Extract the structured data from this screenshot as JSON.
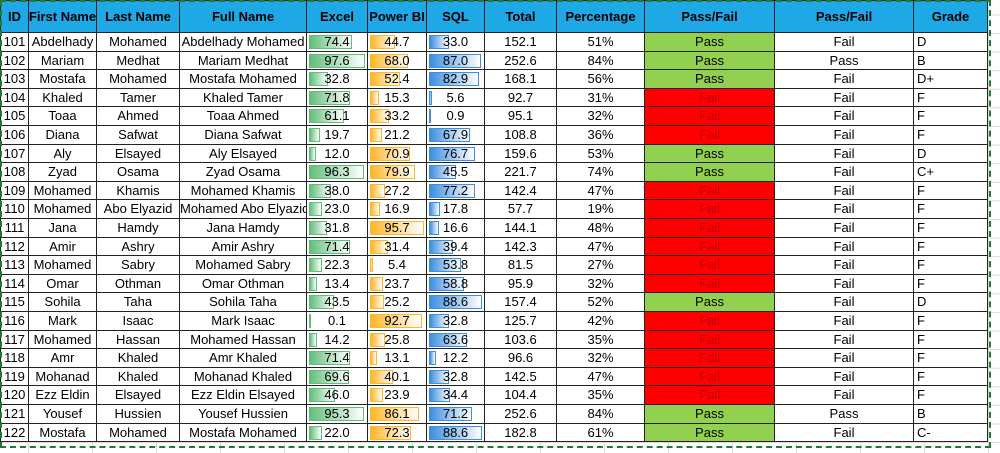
{
  "table": {
    "headers": [
      "ID",
      "First Name",
      "Last Name",
      "Full Name",
      "Excel",
      "Power BI",
      "SQL",
      "Total",
      "Percentage",
      "Pass/Fail",
      "Pass/Fail",
      "Grade"
    ],
    "rows": [
      [
        "101",
        "Abdelhady",
        "Mohamed",
        "Abdelhady Mohamed",
        "74.4",
        "44.7",
        "33.0",
        "152.1",
        "51%",
        "Pass",
        "Fail",
        "D"
      ],
      [
        "102",
        "Mariam",
        "Medhat",
        "Mariam Medhat",
        "97.6",
        "68.0",
        "87.0",
        "252.6",
        "84%",
        "Pass",
        "Pass",
        "B"
      ],
      [
        "103",
        "Mostafa",
        "Mohamed",
        "Mostafa Mohamed",
        "32.8",
        "52.4",
        "82.9",
        "168.1",
        "56%",
        "Pass",
        "Fail",
        "D+"
      ],
      [
        "104",
        "Khaled",
        "Tamer",
        "Khaled Tamer",
        "71.8",
        "15.3",
        "5.6",
        "92.7",
        "31%",
        "Fail",
        "Fail",
        "F"
      ],
      [
        "105",
        "Toaa",
        "Ahmed",
        "Toaa Ahmed",
        "61.1",
        "33.2",
        "0.9",
        "95.1",
        "32%",
        "Fail",
        "Fail",
        "F"
      ],
      [
        "106",
        "Diana",
        "Safwat",
        "Diana Safwat",
        "19.7",
        "21.2",
        "67.9",
        "108.8",
        "36%",
        "Fail",
        "Fail",
        "F"
      ],
      [
        "107",
        "Aly",
        "Elsayed",
        "Aly Elsayed",
        "12.0",
        "70.9",
        "76.7",
        "159.6",
        "53%",
        "Pass",
        "Fail",
        "D"
      ],
      [
        "108",
        "Zyad",
        "Osama",
        "Zyad Osama",
        "96.3",
        "79.9",
        "45.5",
        "221.7",
        "74%",
        "Pass",
        "Fail",
        "C+"
      ],
      [
        "109",
        "Mohamed",
        "Khamis",
        "Mohamed Khamis",
        "38.0",
        "27.2",
        "77.2",
        "142.4",
        "47%",
        "Fail",
        "Fail",
        "F"
      ],
      [
        "110",
        "Mohamed",
        "Abo Elyazid",
        "Mohamed Abo Elyazid",
        "23.0",
        "16.9",
        "17.8",
        "57.7",
        "19%",
        "Fail",
        "Fail",
        "F"
      ],
      [
        "111",
        "Jana",
        "Hamdy",
        "Jana Hamdy",
        "31.8",
        "95.7",
        "16.6",
        "144.1",
        "48%",
        "Fail",
        "Fail",
        "F"
      ],
      [
        "112",
        "Amir",
        "Ashry",
        "Amir Ashry",
        "71.4",
        "31.4",
        "39.4",
        "142.3",
        "47%",
        "Fail",
        "Fail",
        "F"
      ],
      [
        "113",
        "Mohamed",
        "Sabry",
        "Mohamed Sabry",
        "22.3",
        "5.4",
        "53.8",
        "81.5",
        "27%",
        "Fail",
        "Fail",
        "F"
      ],
      [
        "114",
        "Omar",
        "Othman",
        "Omar Othman",
        "13.4",
        "23.7",
        "58.8",
        "95.9",
        "32%",
        "Fail",
        "Fail",
        "F"
      ],
      [
        "115",
        "Sohila",
        "Taha",
        "Sohila Taha",
        "43.5",
        "25.2",
        "88.6",
        "157.4",
        "52%",
        "Pass",
        "Fail",
        "D"
      ],
      [
        "116",
        "Mark",
        "Isaac",
        "Mark Isaac",
        "0.1",
        "92.7",
        "32.8",
        "125.7",
        "42%",
        "Fail",
        "Fail",
        "F"
      ],
      [
        "117",
        "Mohamed",
        "Hassan",
        "Mohamed Hassan",
        "14.2",
        "25.8",
        "63.6",
        "103.6",
        "35%",
        "Fail",
        "Fail",
        "F"
      ],
      [
        "118",
        "Amr",
        "Khaled",
        "Amr Khaled",
        "71.4",
        "13.1",
        "12.2",
        "96.6",
        "32%",
        "Fail",
        "Fail",
        "F"
      ],
      [
        "119",
        "Mohanad",
        "Khaled",
        "Mohanad Khaled",
        "69.6",
        "40.1",
        "32.8",
        "142.5",
        "47%",
        "Fail",
        "Fail",
        "F"
      ],
      [
        "120",
        "Ezz Eldin",
        "Elsayed",
        "Ezz Eldin Elsayed",
        "46.0",
        "23.9",
        "34.4",
        "104.4",
        "35%",
        "Fail",
        "Fail",
        "F"
      ],
      [
        "121",
        "Yousef",
        "Hussien",
        "Yousef Hussien",
        "95.3",
        "86.1",
        "71.2",
        "252.6",
        "84%",
        "Pass",
        "Pass",
        "B"
      ],
      [
        "122",
        "Mostafa",
        "Mohamed",
        "Mostafa Mohamed",
        "22.0",
        "72.3",
        "88.6",
        "182.8",
        "61%",
        "Pass",
        "Fail",
        "C-"
      ]
    ],
    "data_bar_colors": {
      "Excel": "#63be7b",
      "Power BI": "#ffb628",
      "SQL": "#3d8fe0"
    },
    "status_styles": {
      "Pass": {
        "fill": "#92d050",
        "text": "#000000"
      },
      "Fail": {
        "fill": "#ff0000",
        "text": "#c00000"
      }
    },
    "header_color": "#1ea9e6"
  }
}
